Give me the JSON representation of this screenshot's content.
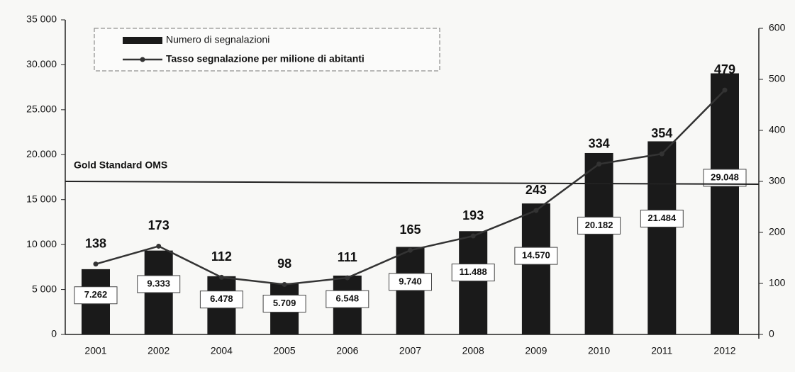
{
  "chart_data": {
    "type": "bar_line",
    "categories": [
      "2001",
      "2002",
      "2004",
      "2005",
      "2006",
      "2007",
      "2008",
      "2009",
      "2010",
      "2011",
      "2012"
    ],
    "series": [
      {
        "name": "Numero di segnalazioni",
        "color": "#1a1a1a",
        "type": "bar",
        "values": [
          7262,
          9333,
          6478,
          5709,
          6548,
          9740,
          11488,
          14570,
          20182,
          21484,
          29048
        ],
        "value_labels": [
          "7.262",
          "9.333",
          "6.478",
          "5.709",
          "6.548",
          "9.740",
          "11.488",
          "14.570",
          "20.182",
          "21.484",
          "29.048"
        ]
      },
      {
        "name": "Tasso segnalazione per milione di abitanti",
        "color": "#333333",
        "type": "line",
        "axis": "y2",
        "values": [
          138,
          173,
          112,
          98,
          111,
          165,
          193,
          243,
          334,
          354,
          479
        ]
      }
    ],
    "ylim": [
      0,
      35000
    ],
    "yticks": [
      0,
      {
        "value": 5000,
        "label": "5 000"
      },
      {
        "value": 10000,
        "label": "10 000"
      },
      {
        "value": 15000,
        "label": "15 000"
      },
      {
        "value": 20000,
        "label": "20.000"
      },
      {
        "value": 25000,
        "label": "25.000"
      },
      {
        "value": 30000,
        "label": "30.000"
      },
      {
        "value": 35000,
        "label": "35 000"
      }
    ],
    "y2lim": [
      0,
      600
    ],
    "y2ticks": [
      0,
      100,
      200,
      300,
      400,
      500,
      600
    ],
    "reference_lines": [
      {
        "label": "Gold Standard OMS",
        "value": 300,
        "axis": "y2"
      }
    ],
    "legend": "top-left"
  }
}
